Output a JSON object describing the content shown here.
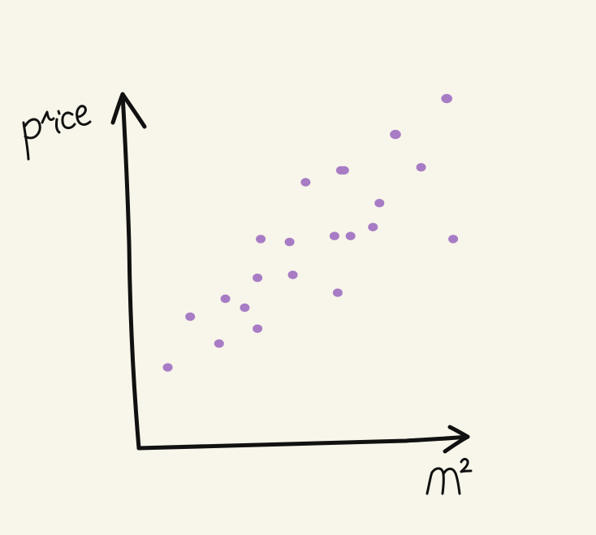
{
  "chart_data": {
    "type": "scatter",
    "xlabel": "m²",
    "ylabel": "price",
    "points": [
      {
        "x": 0.09,
        "y": 0.27
      },
      {
        "x": 0.16,
        "y": 0.44
      },
      {
        "x": 0.25,
        "y": 0.35
      },
      {
        "x": 0.27,
        "y": 0.5
      },
      {
        "x": 0.33,
        "y": 0.47
      },
      {
        "x": 0.37,
        "y": 0.4
      },
      {
        "x": 0.37,
        "y": 0.57
      },
      {
        "x": 0.38,
        "y": 0.7
      },
      {
        "x": 0.47,
        "y": 0.69
      },
      {
        "x": 0.48,
        "y": 0.58
      },
      {
        "x": 0.52,
        "y": 0.89
      },
      {
        "x": 0.61,
        "y": 0.71
      },
      {
        "x": 0.62,
        "y": 0.52
      },
      {
        "x": 0.63,
        "y": 0.93
      },
      {
        "x": 0.64,
        "y": 0.93
      },
      {
        "x": 0.66,
        "y": 0.71
      },
      {
        "x": 0.73,
        "y": 0.74
      },
      {
        "x": 0.75,
        "y": 0.82
      },
      {
        "x": 0.8,
        "y": 1.05
      },
      {
        "x": 0.88,
        "y": 0.94
      },
      {
        "x": 0.98,
        "y": 0.7
      },
      {
        "x": 0.96,
        "y": 1.17
      }
    ],
    "xlim": [
      0,
      1
    ],
    "ylim": [
      0,
      1.25
    ],
    "grid": false,
    "point_color": "#a77cc5",
    "background_color": "#f8f5ea",
    "axis_color": "#111111"
  }
}
